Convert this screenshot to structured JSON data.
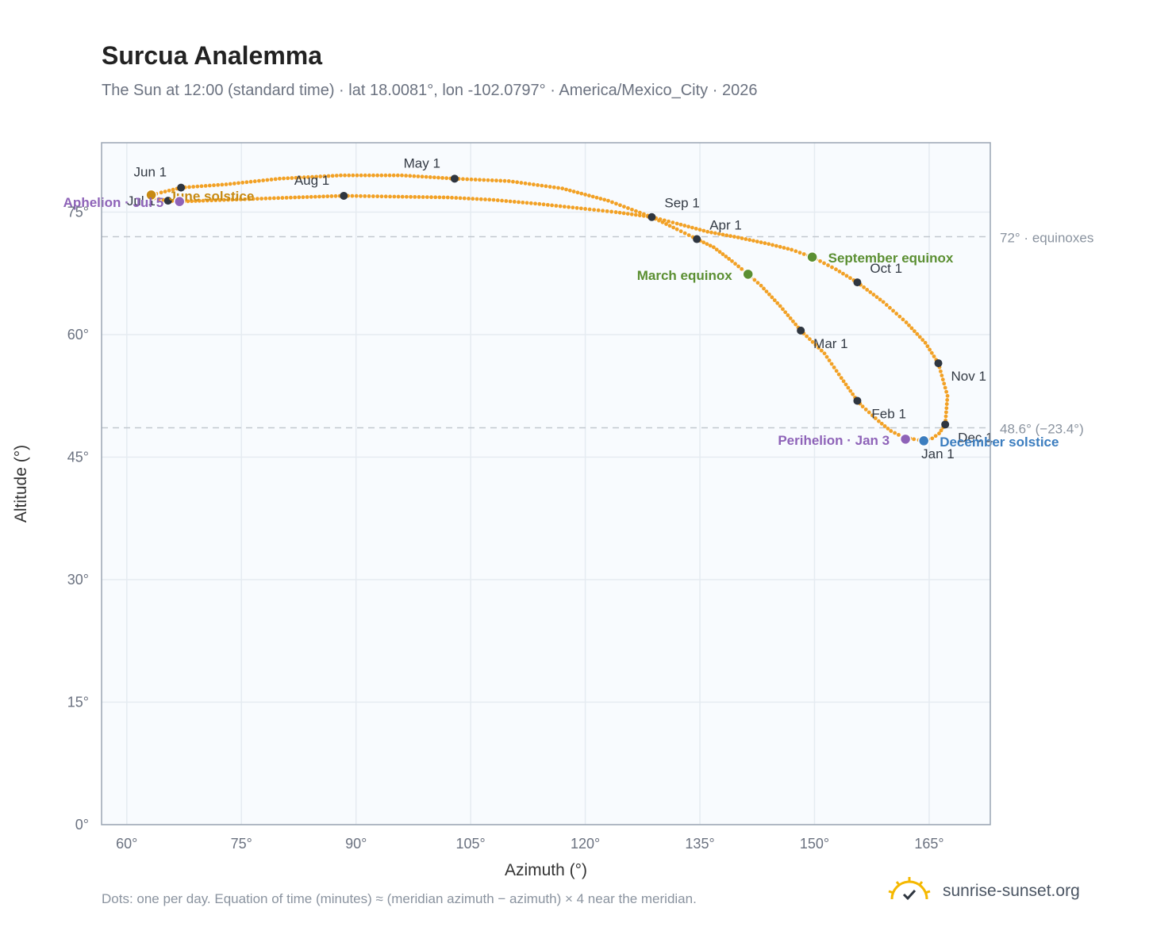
{
  "header": {
    "title": "Surcua Analemma",
    "subtitle": "The Sun at 12:00 (standard time) · lat 18.0081°, lon -102.0797° · America/Mexico_City · 2026"
  },
  "footer": {
    "note": "Dots: one per day. Equation of time (minutes) ≈ (meridian azimuth − azimuth) × 4 near the meridian.",
    "brand": "sunrise-sunset.org"
  },
  "colors": {
    "curve": "#f2a125",
    "month_dot": "#2f3640",
    "equinox": "#5b8f32",
    "december_solstice": "#3b7dbf",
    "june_solstice": "#c78a12",
    "apsis": "#8e63b8",
    "plot_bg": "#f8fbfe",
    "grid": "#e5ebf1",
    "frame": "#9aa5b3",
    "reference_line": "#c2c8cf"
  },
  "chart_data": {
    "type": "scatter",
    "xlabel": "Azimuth (°)",
    "ylabel": "Altitude (°)",
    "xlim": [
      56.7,
      173
    ],
    "ylim": [
      0,
      83.5
    ],
    "x_ticks": [
      60,
      75,
      90,
      105,
      120,
      135,
      150,
      165
    ],
    "x_tick_labels": [
      "60°",
      "75°",
      "90°",
      "105°",
      "120°",
      "135°",
      "150°",
      "165°"
    ],
    "y_ticks": [
      0,
      15,
      30,
      45,
      60,
      75
    ],
    "y_tick_labels": [
      "0°",
      "15°",
      "30°",
      "45°",
      "60°",
      "75°"
    ],
    "grid": true,
    "series": [
      {
        "style": "dots",
        "points": [
          [
            164.3,
            47.0
          ],
          [
            163.0,
            47.2
          ],
          [
            161.5,
            47.5
          ],
          [
            160.0,
            48.2
          ],
          [
            158.4,
            49.4
          ],
          [
            156.3,
            51.2
          ],
          [
            155.6,
            51.9
          ],
          [
            153.5,
            54.7
          ],
          [
            151.3,
            57.7
          ],
          [
            148.2,
            60.5
          ],
          [
            145.5,
            63.5
          ],
          [
            143.0,
            66.0
          ],
          [
            141.3,
            67.4
          ],
          [
            139.2,
            69.0
          ],
          [
            136.8,
            70.7
          ],
          [
            134.6,
            71.7
          ],
          [
            132.0,
            72.9
          ],
          [
            128.7,
            74.4
          ],
          [
            123.0,
            76.4
          ],
          [
            117.0,
            77.9
          ],
          [
            110.0,
            78.8
          ],
          [
            102.9,
            79.1
          ],
          [
            96.0,
            79.5
          ],
          [
            88.0,
            79.5
          ],
          [
            80.0,
            79.1
          ],
          [
            73.0,
            78.4
          ],
          [
            67.1,
            78.0
          ],
          [
            64.5,
            77.4
          ],
          [
            63.2,
            77.1
          ],
          [
            63.6,
            76.7
          ],
          [
            65.4,
            76.4
          ],
          [
            67.0,
            76.3
          ],
          [
            70.0,
            76.4
          ],
          [
            76.0,
            76.6
          ],
          [
            82.0,
            76.8
          ],
          [
            88.4,
            77.0
          ],
          [
            95.0,
            76.9
          ],
          [
            102.0,
            76.8
          ],
          [
            108.0,
            76.5
          ],
          [
            114.0,
            76.0
          ],
          [
            120.0,
            75.4
          ],
          [
            124.0,
            75.0
          ],
          [
            128.7,
            74.4
          ],
          [
            132.0,
            73.6
          ],
          [
            136.0,
            72.6
          ],
          [
            140.0,
            71.9
          ],
          [
            144.0,
            71.1
          ],
          [
            147.0,
            70.4
          ],
          [
            149.7,
            69.5
          ],
          [
            152.8,
            68.0
          ],
          [
            155.6,
            66.4
          ],
          [
            159.0,
            64.0
          ],
          [
            162.0,
            61.5
          ],
          [
            164.5,
            59.0
          ],
          [
            166.2,
            56.5
          ],
          [
            167.4,
            52.5
          ],
          [
            167.1,
            49.0
          ],
          [
            166.3,
            47.9
          ],
          [
            165.4,
            47.3
          ],
          [
            164.3,
            47.0
          ]
        ]
      }
    ],
    "month_markers": [
      {
        "label": "Jan 1",
        "x": 164.4,
        "y": 47.0
      },
      {
        "label": "Feb 1",
        "x": 155.6,
        "y": 51.9
      },
      {
        "label": "Mar 1",
        "x": 148.2,
        "y": 60.5
      },
      {
        "label": "Apr 1",
        "x": 134.6,
        "y": 71.7
      },
      {
        "label": "May 1",
        "x": 102.9,
        "y": 79.1
      },
      {
        "label": "Jun 1",
        "x": 67.1,
        "y": 78.0
      },
      {
        "label": "Jul 1",
        "x": 65.4,
        "y": 76.4
      },
      {
        "label": "Aug 1",
        "x": 88.4,
        "y": 77.0
      },
      {
        "label": "Sep 1",
        "x": 128.7,
        "y": 74.4
      },
      {
        "label": "Oct 1",
        "x": 155.6,
        "y": 66.4
      },
      {
        "label": "Nov 1",
        "x": 166.2,
        "y": 56.5
      },
      {
        "label": "Dec 1",
        "x": 167.1,
        "y": 49.0
      }
    ],
    "events": [
      {
        "label": "March equinox",
        "x": 141.3,
        "y": 67.4,
        "color": "#5b8f32"
      },
      {
        "label": "September equinox",
        "x": 149.7,
        "y": 69.5,
        "color": "#5b8f32"
      },
      {
        "label": "June solstice",
        "x": 63.2,
        "y": 77.1,
        "color": "#c78a12"
      },
      {
        "label": "December solstice",
        "x": 164.3,
        "y": 47.0,
        "color": "#3b7dbf"
      },
      {
        "label": "Perihelion · Jan 3",
        "x": 161.9,
        "y": 47.2,
        "color": "#8e63b8"
      },
      {
        "label": "Aphelion · Jul 5",
        "x": 66.9,
        "y": 76.3,
        "color": "#8e63b8"
      }
    ],
    "reference_lines": [
      {
        "y": 72,
        "label": "72° · equinoxes"
      },
      {
        "y": 48.6,
        "label": "48.6° (−23.4°)"
      }
    ]
  }
}
